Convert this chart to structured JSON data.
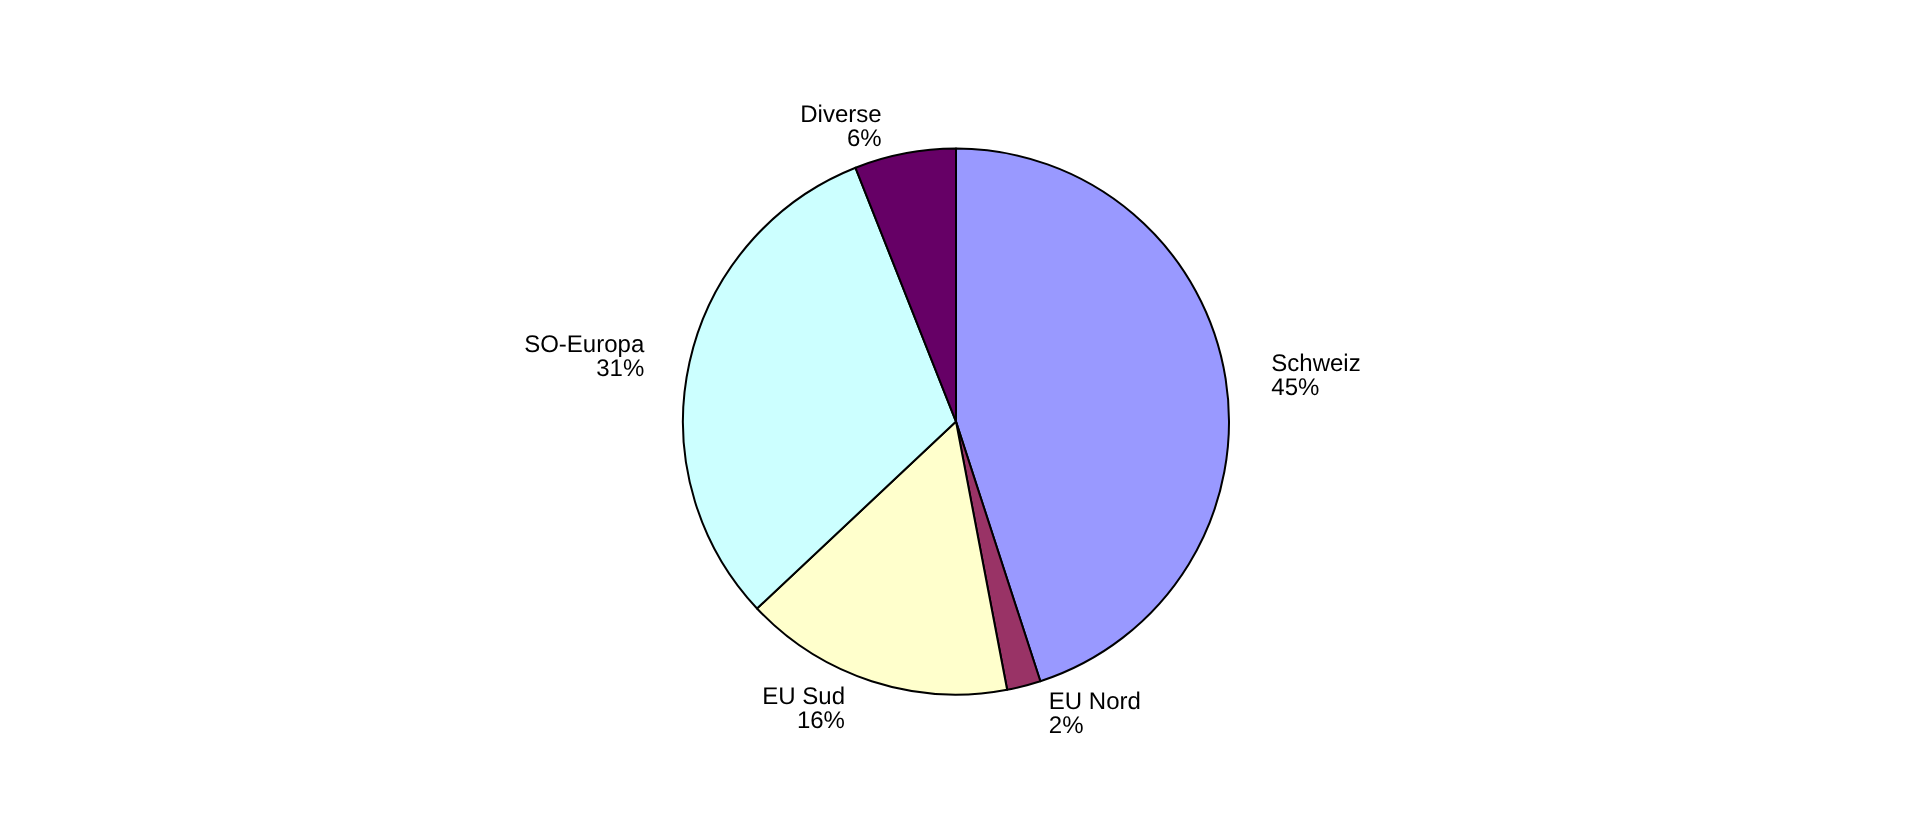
{
  "chart_data": {
    "type": "pie",
    "categories": [
      "Schweiz",
      "EU Nord",
      "EU Sud",
      "SO-Europa",
      "Diverse"
    ],
    "values": [
      45,
      2,
      16,
      31,
      6
    ],
    "value_labels": [
      "45%",
      "2%",
      "16%",
      "31%",
      "6%"
    ],
    "colors": [
      "#9999ff",
      "#993366",
      "#ffffcc",
      "#ccffff",
      "#660066"
    ],
    "legend": false
  }
}
